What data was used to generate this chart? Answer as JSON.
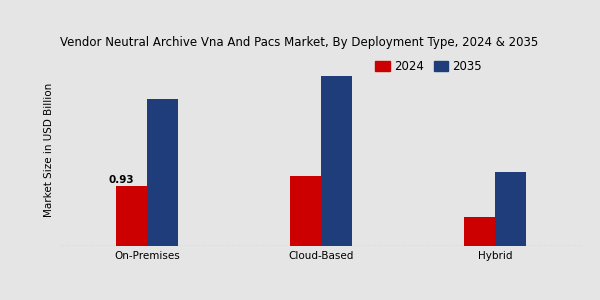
{
  "title": "Vendor Neutral Archive Vna And Pacs Market, By Deployment Type, 2024 & 2035",
  "ylabel": "Market Size in USD Billion",
  "categories": [
    "On-Premises",
    "Cloud-Based",
    "Hybrid"
  ],
  "values_2024": [
    0.93,
    1.1,
    0.45
  ],
  "values_2035": [
    2.3,
    2.65,
    1.15
  ],
  "color_2024": "#cc0000",
  "color_2035": "#1f3d7a",
  "background_color": "#e5e5e5",
  "annotation_text": "0.93",
  "legend_labels": [
    "2024",
    "2035"
  ],
  "bar_width": 0.18,
  "ylim": [
    0,
    3.0
  ],
  "title_fontsize": 8.5,
  "axis_label_fontsize": 7.5,
  "tick_fontsize": 7.5,
  "legend_fontsize": 8.5
}
